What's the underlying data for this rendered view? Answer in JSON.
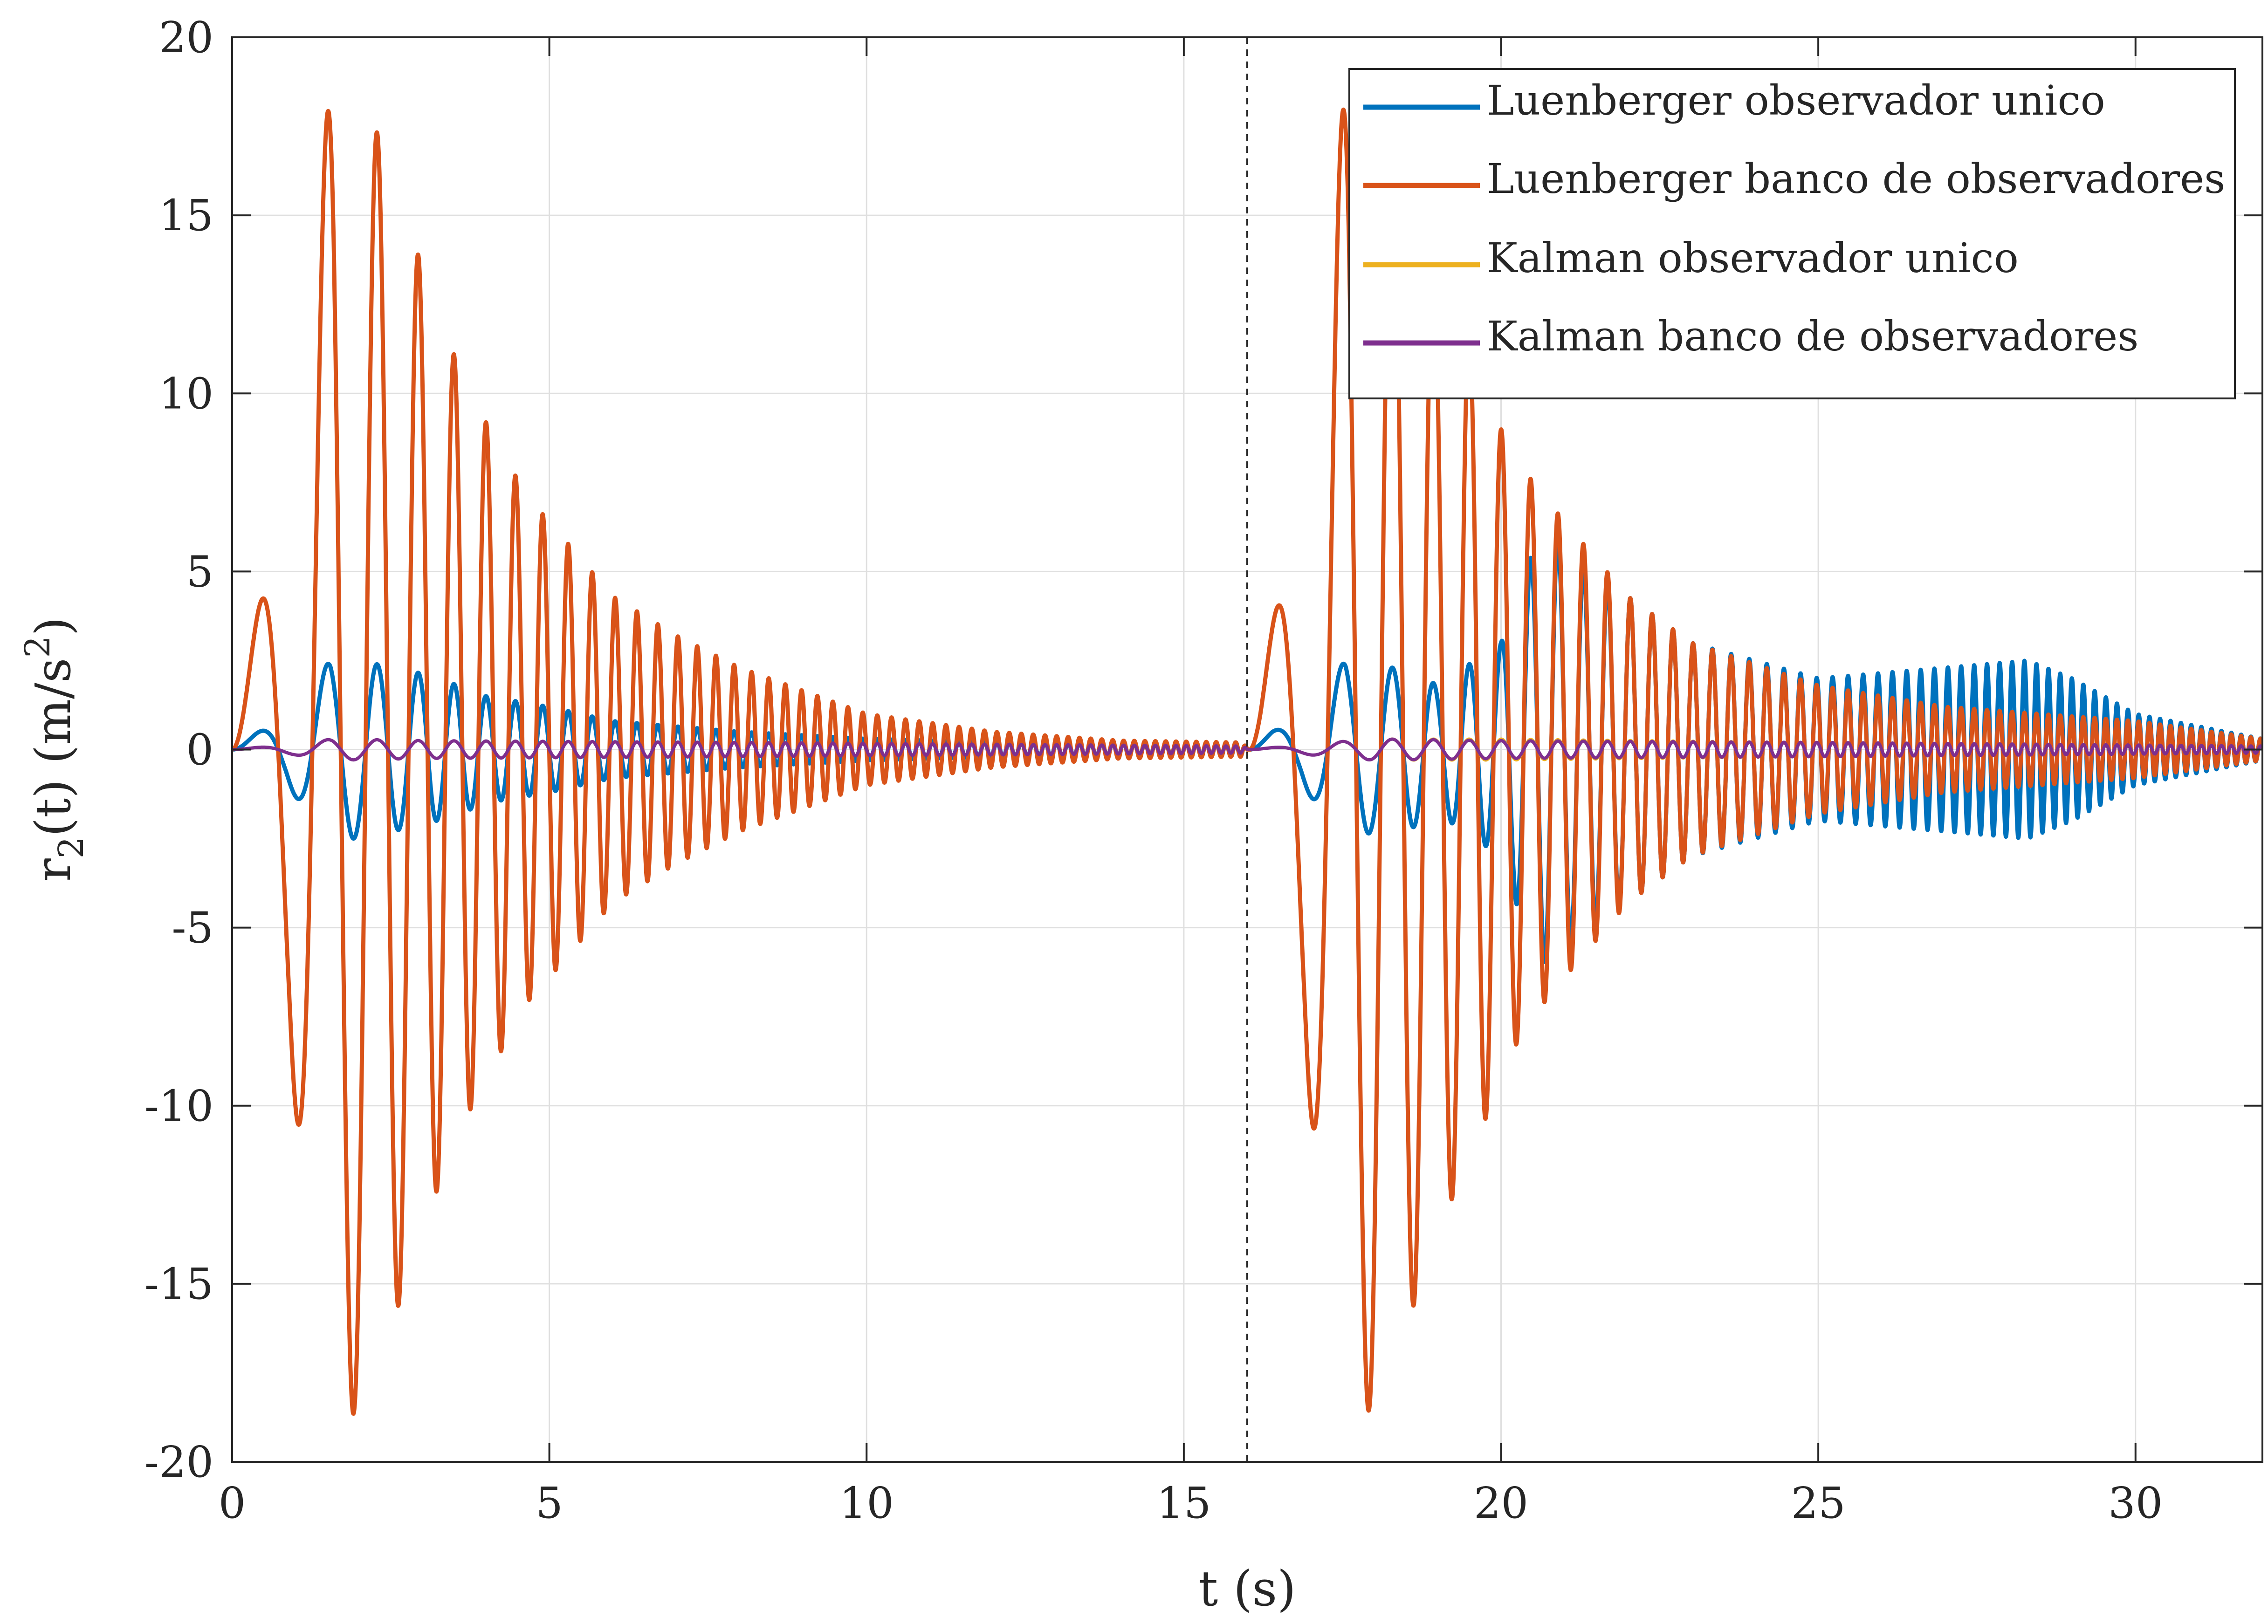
{
  "chart_data": {
    "type": "line",
    "title": "",
    "xlabel": "t (s)",
    "ylabel": {
      "base": "r",
      "sub": "2",
      "mid": "(t) (m/s",
      "sup": "2",
      "end": ")"
    },
    "xlim": [
      0,
      32
    ],
    "ylim": [
      -20,
      20
    ],
    "xticks": [
      0,
      5,
      10,
      15,
      20,
      25,
      30
    ],
    "xtick_labels": [
      "0",
      "5",
      "10",
      "15",
      "20",
      "25",
      "30"
    ],
    "yticks": [
      20,
      15,
      10,
      5,
      0,
      -5,
      -10,
      -15,
      -20
    ],
    "ytick_labels": [
      "20",
      "15",
      "10",
      "5",
      "0",
      "-5",
      "-10",
      "-15",
      "-20"
    ],
    "grid": true,
    "legend_position": "top-right",
    "vertical_marker": {
      "x": 16,
      "style": "dashed",
      "color": "#262626"
    },
    "series": [
      {
        "name": "Luenberger observador unico",
        "color": "#0072BD",
        "model": "damped_chirp",
        "points": [
          [
            0,
            0
          ],
          [
            0.85,
            1.0
          ],
          [
            1.55,
            -2.5
          ],
          [
            2.05,
            2.5
          ],
          [
            2.5,
            -2.3
          ],
          [
            2.8,
            2.2
          ],
          [
            3.1,
            -2.1
          ],
          [
            3.35,
            1.9
          ],
          [
            3.6,
            -1.8
          ],
          [
            4.0,
            1.5
          ],
          [
            5.0,
            1.2
          ],
          [
            6.0,
            0.8
          ],
          [
            8.0,
            0.5
          ],
          [
            10.0,
            0.3
          ],
          [
            12.0,
            0.2
          ],
          [
            15.9,
            0.2
          ],
          [
            16.05,
            0
          ],
          [
            16.4,
            0.5
          ],
          [
            16.85,
            1.0
          ],
          [
            17.55,
            -2.5
          ],
          [
            18.05,
            2.3
          ],
          [
            18.5,
            -2.3
          ],
          [
            19.0,
            1.8
          ],
          [
            20.0,
            3.0
          ],
          [
            20.4,
            5.2
          ],
          [
            20.7,
            -6.0
          ],
          [
            20.9,
            5.9
          ],
          [
            21.2,
            -5.2
          ],
          [
            22.0,
            4.3
          ],
          [
            23.0,
            -3.0
          ],
          [
            25.0,
            2.0
          ],
          [
            27.0,
            2.3
          ],
          [
            28.3,
            2.5
          ],
          [
            29.0,
            2.0
          ],
          [
            30.0,
            1.0
          ],
          [
            32.0,
            0.3
          ]
        ]
      },
      {
        "name": "Luenberger banco de observadores",
        "color": "#D95319",
        "model": "damped_chirp",
        "points": [
          [
            0,
            0
          ],
          [
            0.9,
            8.5
          ],
          [
            1.6,
            -19.4
          ],
          [
            2.1,
            18.2
          ],
          [
            2.5,
            -16.3
          ],
          [
            2.8,
            14.6
          ],
          [
            3.1,
            -13.0
          ],
          [
            3.35,
            11.8
          ],
          [
            3.6,
            -10.6
          ],
          [
            3.85,
            9.8
          ],
          [
            4.05,
            -9.0
          ],
          [
            4.3,
            8.3
          ],
          [
            4.6,
            -7.2
          ],
          [
            5.0,
            6.4
          ],
          [
            6.0,
            -4.3
          ],
          [
            7.0,
            3.2
          ],
          [
            8.0,
            2.3
          ],
          [
            10.0,
            1.0
          ],
          [
            12.0,
            0.5
          ],
          [
            14.0,
            0.25
          ],
          [
            15.9,
            0.2
          ],
          [
            16.05,
            0
          ],
          [
            16.2,
            -1.4
          ],
          [
            16.9,
            8.6
          ],
          [
            17.6,
            -19.4
          ],
          [
            18.05,
            18.2
          ],
          [
            18.5,
            -16.3
          ],
          [
            18.8,
            14.6
          ],
          [
            19.1,
            -13.0
          ],
          [
            19.5,
            11.8
          ],
          [
            20.0,
            -9.0
          ],
          [
            20.5,
            7.5
          ],
          [
            21.0,
            -6.4
          ],
          [
            22.0,
            4.3
          ],
          [
            23.0,
            3.0
          ],
          [
            25.0,
            1.8
          ],
          [
            27.0,
            1.2
          ],
          [
            30.0,
            0.8
          ],
          [
            32.0,
            0.3
          ]
        ]
      },
      {
        "name": "Kalman observador unico",
        "color": "#EDB120",
        "model": "damped_chirp",
        "points": [
          [
            0,
            0
          ],
          [
            1.0,
            0.15
          ],
          [
            1.6,
            -0.3
          ],
          [
            3.0,
            0.25
          ],
          [
            8.0,
            0.2
          ],
          [
            15.9,
            0.1
          ],
          [
            16.05,
            0
          ],
          [
            17.0,
            0.15
          ],
          [
            18.0,
            -0.3
          ],
          [
            20.0,
            0.3
          ],
          [
            25.0,
            0.2
          ],
          [
            32.0,
            0.1
          ]
        ]
      },
      {
        "name": "Kalman banco de observadores",
        "color": "#7E2F8E",
        "model": "damped_chirp",
        "points": [
          [
            0,
            0
          ],
          [
            1.0,
            0.15
          ],
          [
            1.6,
            -0.3
          ],
          [
            3.0,
            0.25
          ],
          [
            8.0,
            0.2
          ],
          [
            15.9,
            0.1
          ],
          [
            16.05,
            0
          ],
          [
            17.0,
            0.15
          ],
          [
            18.0,
            -0.3
          ],
          [
            20.0,
            0.25
          ],
          [
            25.0,
            0.2
          ],
          [
            32.0,
            0.1
          ]
        ]
      }
    ]
  }
}
